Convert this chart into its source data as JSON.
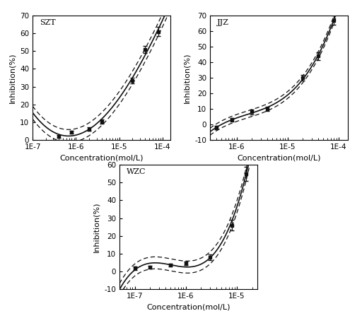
{
  "panels": [
    {
      "label": "SZT",
      "xlim": [
        1e-07,
        0.00015
      ],
      "ylim": [
        0,
        70
      ],
      "yticks": [
        0,
        10,
        20,
        30,
        40,
        50,
        60,
        70
      ],
      "xtick_labels": [
        "1E-7",
        "1E-6",
        "1E-5",
        "1E-4"
      ],
      "xtick_vals": [
        1e-07,
        1e-06,
        1e-05,
        0.0001
      ],
      "data_x": [
        4e-07,
        8e-07,
        2e-06,
        4e-06,
        2e-05,
        4e-05,
        8e-05
      ],
      "data_y": [
        2.0,
        4.5,
        6.0,
        10.5,
        33.5,
        51.0,
        61.0
      ],
      "data_yerr": [
        0.8,
        0.8,
        1.0,
        1.2,
        1.5,
        2.0,
        2.5
      ],
      "curve_x_start": 1e-07,
      "curve_x_end": 0.00015,
      "ci_upper_offset": [
        2.5,
        2.5,
        2.5,
        2.5,
        2.5,
        2.5,
        2.5,
        2.5,
        2.5,
        2.5
      ],
      "ci_lower_offset": [
        2.5,
        2.5,
        2.5,
        2.5,
        2.5,
        2.5,
        2.5,
        2.5,
        2.5,
        2.5
      ]
    },
    {
      "label": "JJZ",
      "xlim": [
        3e-07,
        0.00015
      ],
      "ylim": [
        -10,
        70
      ],
      "yticks": [
        -10,
        0,
        10,
        20,
        30,
        40,
        50,
        60,
        70
      ],
      "xtick_labels": [
        "1E-6",
        "1E-5",
        "1E-4"
      ],
      "xtick_vals": [
        1e-06,
        1e-05,
        0.0001
      ],
      "data_x": [
        4e-07,
        8e-07,
        2e-06,
        4e-06,
        2e-05,
        4e-05,
        8e-05
      ],
      "data_y": [
        -2.0,
        3.0,
        8.0,
        10.0,
        30.0,
        44.0,
        67.0
      ],
      "data_yerr": [
        1.0,
        1.0,
        1.5,
        1.5,
        2.0,
        2.5,
        3.0
      ],
      "curve_x_start": 3e-07,
      "curve_x_end": 0.00015,
      "ci_upper_offset": [
        3.0,
        3.0,
        3.0,
        3.0,
        3.0,
        3.0,
        3.0,
        3.0,
        3.0
      ],
      "ci_lower_offset": [
        3.0,
        3.0,
        3.0,
        3.0,
        3.0,
        3.0,
        3.0,
        3.0,
        3.0
      ]
    },
    {
      "label": "WZC",
      "xlim": [
        5e-08,
        2.5e-05
      ],
      "ylim": [
        -10,
        60
      ],
      "yticks": [
        -10,
        0,
        10,
        20,
        30,
        40,
        50,
        60
      ],
      "xtick_labels": [
        "1E-7",
        "1E-6",
        "1E-5"
      ],
      "xtick_vals": [
        1e-07,
        1e-06,
        1e-05
      ],
      "data_x": [
        1e-07,
        2e-07,
        5e-07,
        1e-06,
        3e-06,
        8e-06,
        1.5e-05
      ],
      "data_y": [
        2.0,
        2.5,
        3.5,
        4.5,
        8.0,
        26.0,
        55.0
      ],
      "data_yerr": [
        1.0,
        0.8,
        0.8,
        1.0,
        1.5,
        3.0,
        4.0
      ],
      "curve_x_start": 5e-08,
      "curve_x_end": 2.5e-05,
      "ci_upper_offset": [
        3.0,
        3.0,
        3.0,
        3.0,
        3.0,
        3.0,
        3.0
      ],
      "ci_lower_offset": [
        3.0,
        3.0,
        3.0,
        3.0,
        3.0,
        3.0,
        3.0
      ]
    }
  ],
  "line_color": "#111111",
  "marker_color": "#111111",
  "bg_color": "#ffffff",
  "xlabel": "Concentration(mol/L)",
  "ylabel": "Inhibition(%)",
  "label_fontsize": 8,
  "axis_fontsize": 8,
  "tick_fontsize": 7.5
}
